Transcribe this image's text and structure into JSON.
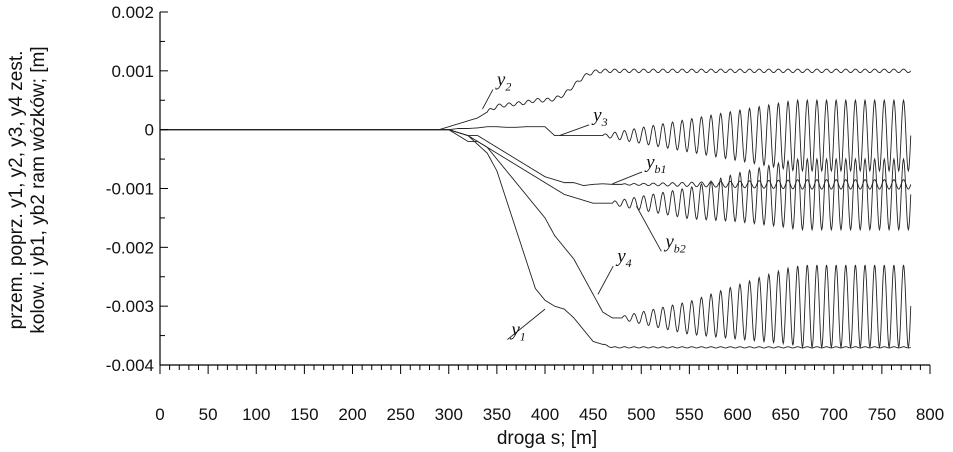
{
  "chart_data": {
    "type": "line",
    "title": "",
    "xlabel": "droga s; [m]",
    "ylabel_line1": "przem. poprz. y1, y2, y3, y4 zest.",
    "ylabel_line2": "kolow. i yb1, yb2 ram wózków; [m]",
    "xlim": [
      0,
      800
    ],
    "ylim": [
      -0.004,
      0.002
    ],
    "xticks": [
      0,
      50,
      100,
      150,
      200,
      250,
      300,
      350,
      400,
      450,
      500,
      550,
      600,
      650,
      700,
      750,
      800
    ],
    "yticks": [
      0.002,
      0.001,
      0,
      -0.001,
      -0.002,
      -0.003,
      -0.004
    ],
    "ytick_labels": [
      "0.002",
      "0.001",
      "0",
      "-0.001",
      "-0.002",
      "-0.003",
      "-0.004"
    ],
    "grid": false,
    "series": [
      {
        "name": "y1",
        "x": [
          0,
          290,
          300,
          310,
          320,
          330,
          340,
          350,
          360,
          370,
          380,
          390,
          400,
          410,
          420,
          430,
          440,
          450,
          460,
          470,
          480,
          500,
          550,
          600,
          650,
          700,
          750,
          780
        ],
        "y": [
          0,
          0,
          0,
          -5e-05,
          -0.0001,
          -0.00025,
          -0.0004,
          -0.0007,
          -0.0012,
          -0.0017,
          -0.0022,
          -0.0027,
          -0.0029,
          -0.003,
          -0.00305,
          -0.0032,
          -0.0034,
          -0.0036,
          -0.00365,
          -0.0037,
          -0.0037,
          -0.0037,
          -0.0037,
          -0.0037,
          -0.0037,
          -0.0037,
          -0.0037,
          -0.0037
        ],
        "osc_start": 460,
        "osc_end": 780,
        "osc_amp_start": 1e-05,
        "osc_amp_end": 1e-05,
        "osc_period": 10
      },
      {
        "name": "y2",
        "x": [
          0,
          290,
          300,
          310,
          320,
          330,
          340,
          350,
          360,
          370,
          380,
          390,
          400,
          410,
          420,
          430,
          440,
          450,
          460,
          470,
          480,
          500,
          550,
          600,
          650,
          700,
          750,
          780
        ],
        "y": [
          0,
          0,
          5e-05,
          0.0001,
          0.00015,
          0.0002,
          0.0003,
          0.0004,
          0.00042,
          0.00044,
          0.00046,
          0.0005,
          0.0005,
          0.00052,
          0.0006,
          0.00075,
          0.0009,
          0.00098,
          0.001,
          0.001,
          0.001,
          0.001,
          0.001,
          0.001,
          0.001,
          0.001,
          0.001,
          0.001
        ],
        "osc_start": 340,
        "osc_end": 780,
        "osc_amp_start": 3e-05,
        "osc_amp_end": 3e-05,
        "osc_period": 10
      },
      {
        "name": "y3",
        "x": [
          0,
          290,
          300,
          310,
          320,
          330,
          340,
          350,
          360,
          370,
          380,
          390,
          400,
          410,
          420,
          430,
          440,
          450,
          460,
          470,
          480,
          500,
          550,
          600,
          650,
          700,
          750,
          780
        ],
        "y": [
          0,
          0,
          0,
          2e-05,
          2e-05,
          3e-05,
          5e-05,
          5e-05,
          4e-05,
          4e-05,
          5e-05,
          5e-05,
          5e-05,
          -0.0001,
          -0.0001,
          -0.0001,
          -0.0001,
          -0.0001,
          -0.0001,
          -0.0001,
          -0.0001,
          -0.0001,
          -0.0001,
          -0.0001,
          -0.0001,
          -0.0001,
          -0.0001,
          -0.0001
        ],
        "osc_start": 460,
        "osc_end": 780,
        "osc_amp_start": 2e-05,
        "osc_amp_end": 0.0006,
        "osc_period": 10
      },
      {
        "name": "y4",
        "x": [
          0,
          290,
          300,
          310,
          320,
          330,
          340,
          350,
          360,
          370,
          380,
          390,
          400,
          410,
          420,
          430,
          440,
          450,
          460,
          470,
          480,
          500,
          550,
          600,
          650,
          700,
          750,
          780
        ],
        "y": [
          0,
          0,
          0,
          -0.0001,
          -0.0002,
          -0.0002,
          -0.0003,
          -0.0005,
          -0.0007,
          -0.0009,
          -0.0011,
          -0.0013,
          -0.0015,
          -0.0018,
          -0.002,
          -0.0022,
          -0.0025,
          -0.0028,
          -0.0031,
          -0.0032,
          -0.0032,
          -0.0032,
          -0.0032,
          -0.0031,
          -0.003,
          -0.003,
          -0.003,
          -0.003
        ],
        "osc_start": 480,
        "osc_end": 780,
        "osc_amp_start": 3e-05,
        "osc_amp_end": 0.0007,
        "osc_period": 10
      },
      {
        "name": "yb1",
        "x": [
          0,
          290,
          300,
          310,
          320,
          330,
          340,
          350,
          360,
          370,
          380,
          390,
          400,
          410,
          420,
          430,
          440,
          450,
          460,
          470,
          480,
          500,
          550,
          600,
          650,
          700,
          750,
          780
        ],
        "y": [
          0,
          0,
          0,
          -5e-05,
          -0.0001,
          -0.0001,
          -0.0002,
          -0.0003,
          -0.0004,
          -0.0005,
          -0.0006,
          -0.0007,
          -0.0008,
          -0.00085,
          -0.0009,
          -0.0009,
          -0.00095,
          -0.00093,
          -0.00092,
          -0.00093,
          -0.00093,
          -0.00093,
          -0.00093,
          -0.00093,
          -0.00093,
          -0.00093,
          -0.00093,
          -0.00093
        ],
        "osc_start": 480,
        "osc_end": 780,
        "osc_amp_start": 1e-05,
        "osc_amp_end": 8e-05,
        "osc_period": 10
      },
      {
        "name": "yb2",
        "x": [
          0,
          290,
          300,
          310,
          320,
          330,
          340,
          350,
          360,
          370,
          380,
          390,
          400,
          410,
          420,
          430,
          440,
          450,
          460,
          470,
          480,
          500,
          550,
          600,
          650,
          700,
          750,
          780
        ],
        "y": [
          0,
          0,
          0,
          -5e-05,
          -0.0001,
          -0.0002,
          -0.0003,
          -0.0004,
          -0.0005,
          -0.0006,
          -0.0007,
          -0.0008,
          -0.0009,
          -0.001,
          -0.0011,
          -0.00115,
          -0.0012,
          -0.00125,
          -0.00125,
          -0.00125,
          -0.00125,
          -0.00125,
          -0.00125,
          -0.00115,
          -0.0011,
          -0.0011,
          -0.0011,
          -0.0011
        ],
        "osc_start": 470,
        "osc_end": 780,
        "osc_amp_start": 3e-05,
        "osc_amp_end": 0.0006,
        "osc_period": 10
      }
    ],
    "annotations": [
      {
        "base": "y",
        "sub": "2",
        "series": "y2",
        "x": 350,
        "y": 0.00075,
        "point_x": 335,
        "point_y": 0.00035
      },
      {
        "base": "y",
        "sub": "3",
        "series": "y3",
        "x": 450,
        "y": 0.00015,
        "point_x": 415,
        "point_y": -0.0001
      },
      {
        "base": "y",
        "sub": "b1",
        "series": "yb1",
        "x": 505,
        "y": -0.00065,
        "point_x": 470,
        "point_y": -0.00092
      },
      {
        "base": "y",
        "sub": "b2",
        "series": "yb2",
        "x": 525,
        "y": -0.002,
        "point_x": 495,
        "point_y": -0.0013
      },
      {
        "base": "y",
        "sub": "4",
        "series": "y4",
        "x": 475,
        "y": -0.00225,
        "point_x": 455,
        "point_y": -0.0028
      },
      {
        "base": "y",
        "sub": "1",
        "series": "y1",
        "x": 365,
        "y": -0.0035,
        "point_x": 400,
        "point_y": -0.00305
      }
    ]
  }
}
